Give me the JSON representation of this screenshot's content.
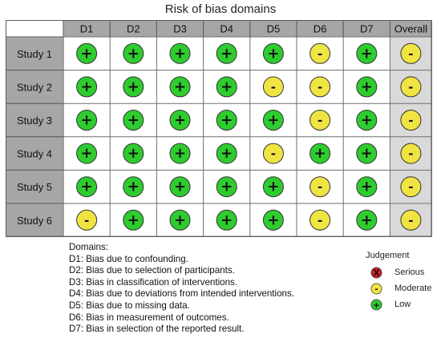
{
  "chart_data": {
    "type": "table",
    "title": "Risk of bias domains",
    "columns": [
      "D1",
      "D2",
      "D3",
      "D4",
      "D5",
      "D6",
      "D7",
      "Overall"
    ],
    "rows": [
      {
        "label": "Study 1",
        "judgements": [
          "low",
          "low",
          "low",
          "low",
          "low",
          "moderate",
          "low",
          "moderate"
        ]
      },
      {
        "label": "Study 2",
        "judgements": [
          "low",
          "low",
          "low",
          "low",
          "moderate",
          "moderate",
          "low",
          "moderate"
        ]
      },
      {
        "label": "Study 3",
        "judgements": [
          "low",
          "low",
          "low",
          "low",
          "low",
          "moderate",
          "low",
          "moderate"
        ]
      },
      {
        "label": "Study 4",
        "judgements": [
          "low",
          "low",
          "low",
          "low",
          "moderate",
          "low",
          "low",
          "moderate"
        ]
      },
      {
        "label": "Study 5",
        "judgements": [
          "low",
          "low",
          "low",
          "low",
          "low",
          "moderate",
          "low",
          "moderate"
        ]
      },
      {
        "label": "Study 6",
        "judgements": [
          "moderate",
          "low",
          "low",
          "low",
          "low",
          "moderate",
          "low",
          "moderate"
        ]
      }
    ],
    "domains_heading": "Domains:",
    "domains": [
      "D1: Bias due to confounding.",
      "D2: Bias due to selection of participants.",
      "D3: Bias in classification of interventions.",
      "D4: Bias due to deviations from intended interventions.",
      "D5: Bias due to missing data.",
      "D6: Bias in measurement of outcomes.",
      "D7: Bias in selection of the reported result."
    ],
    "legend": {
      "title": "Judgement",
      "items": [
        {
          "key": "serious",
          "label": "Serious",
          "symbol": "X",
          "color": "#d11f1f"
        },
        {
          "key": "moderate",
          "label": "Moderate",
          "symbol": "-",
          "color": "#f0e442"
        },
        {
          "key": "low",
          "label": "Low",
          "symbol": "+",
          "color": "#2ecc2e"
        }
      ]
    }
  }
}
